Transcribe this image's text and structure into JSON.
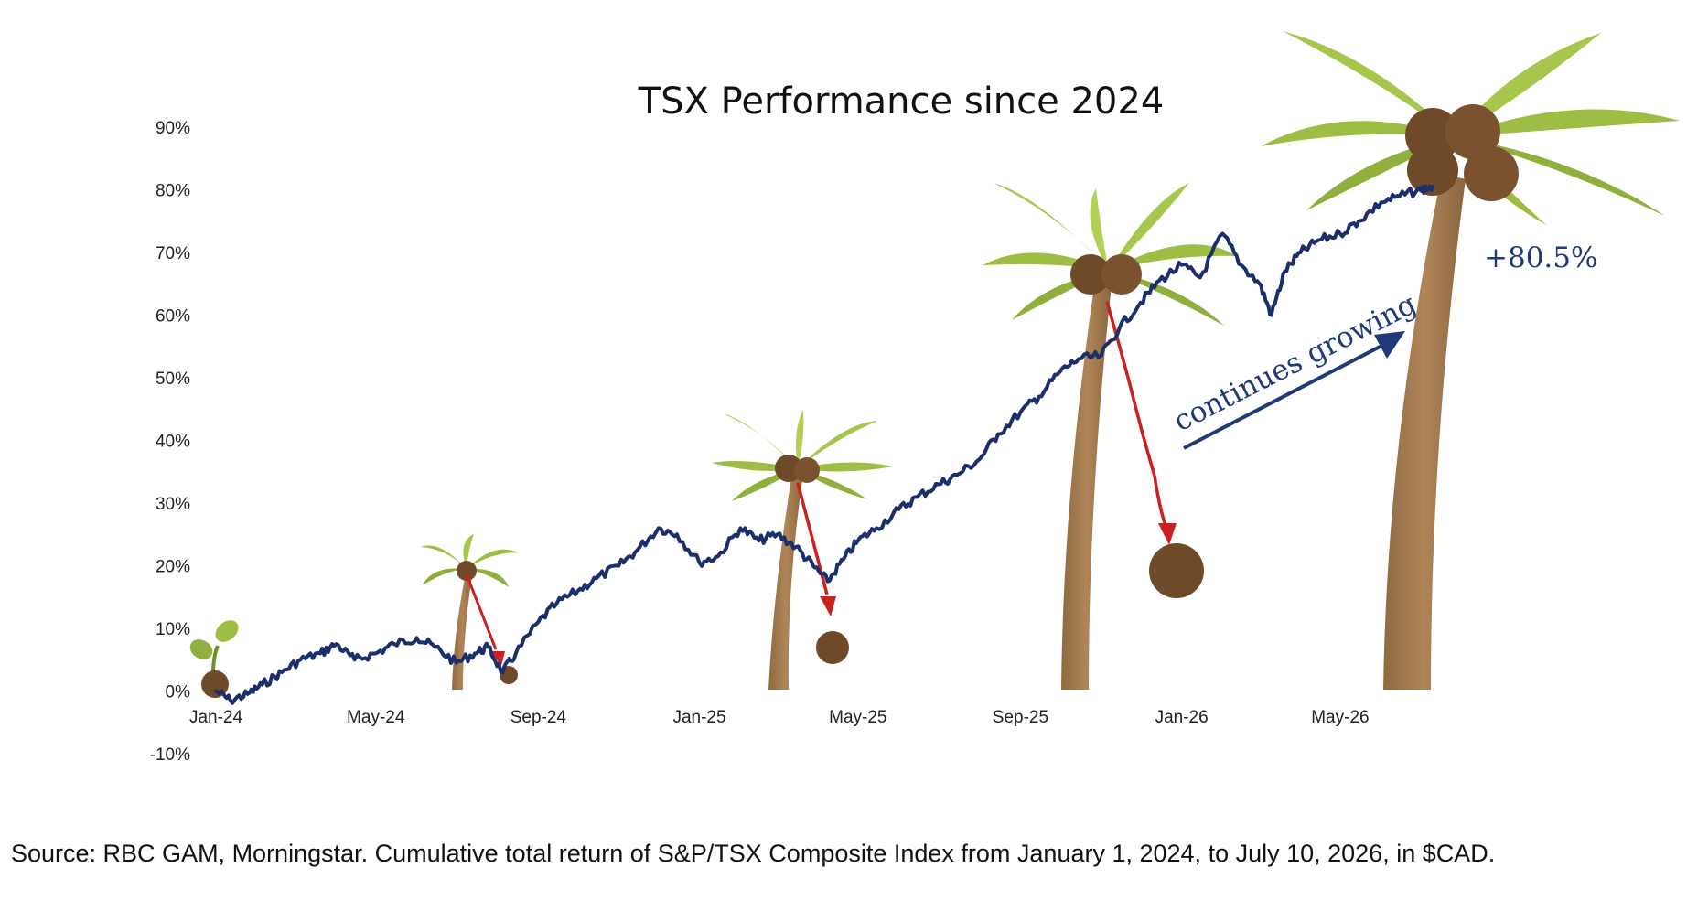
{
  "chart_data": {
    "type": "line",
    "title": "TSX Performance since 2024",
    "xlabel": "",
    "ylabel": "",
    "y_ticks": [
      "90%",
      "80%",
      "70%",
      "60%",
      "50%",
      "40%",
      "30%",
      "20%",
      "10%",
      "0%",
      "-10%"
    ],
    "y_tick_values": [
      90,
      80,
      70,
      60,
      50,
      40,
      30,
      20,
      10,
      0,
      -10
    ],
    "ylim": [
      -10,
      90
    ],
    "x_ticks": [
      "Jan-24",
      "May-24",
      "Sep-24",
      "Jan-25",
      "May-25",
      "Sep-25",
      "Jan-26",
      "May-26"
    ],
    "x_tick_dates": [
      "2024-01-01",
      "2024-05-01",
      "2024-09-01",
      "2025-01-01",
      "2025-05-01",
      "2025-09-01",
      "2026-01-01",
      "2026-05-01"
    ],
    "xlim": [
      "2024-01-01",
      "2026-07-10"
    ],
    "grid": false,
    "legend": "none",
    "series": [
      {
        "color": "#1b2f6b",
        "points": [
          [
            "2024-01-01",
            0
          ],
          [
            "2024-01-12",
            -1.5
          ],
          [
            "2024-01-25",
            -0.5
          ],
          [
            "2024-02-05",
            1
          ],
          [
            "2024-02-20",
            3
          ],
          [
            "2024-03-05",
            5
          ],
          [
            "2024-03-20",
            6
          ],
          [
            "2024-04-01",
            7.5
          ],
          [
            "2024-04-15",
            5
          ],
          [
            "2024-05-01",
            6
          ],
          [
            "2024-05-15",
            7.5
          ],
          [
            "2024-06-01",
            8.5
          ],
          [
            "2024-06-15",
            7
          ],
          [
            "2024-07-01",
            4.5
          ],
          [
            "2024-07-15",
            6
          ],
          [
            "2024-07-25",
            7
          ],
          [
            "2024-08-05",
            3
          ],
          [
            "2024-08-15",
            6
          ],
          [
            "2024-09-01",
            11
          ],
          [
            "2024-09-15",
            14
          ],
          [
            "2024-10-01",
            16
          ],
          [
            "2024-10-15",
            18
          ],
          [
            "2024-11-01",
            20
          ],
          [
            "2024-11-15",
            22.5
          ],
          [
            "2024-12-01",
            26
          ],
          [
            "2024-12-15",
            25
          ],
          [
            "2025-01-01",
            20.5
          ],
          [
            "2025-01-15",
            21.5
          ],
          [
            "2025-02-01",
            26
          ],
          [
            "2025-02-15",
            24
          ],
          [
            "2025-03-01",
            25
          ],
          [
            "2025-03-15",
            23
          ],
          [
            "2025-03-28",
            20
          ],
          [
            "2025-04-08",
            17.5
          ],
          [
            "2025-04-20",
            21
          ],
          [
            "2025-05-01",
            24
          ],
          [
            "2025-05-15",
            26
          ],
          [
            "2025-06-01",
            29
          ],
          [
            "2025-06-15",
            31
          ],
          [
            "2025-07-01",
            33
          ],
          [
            "2025-07-15",
            34.5
          ],
          [
            "2025-08-01",
            37
          ],
          [
            "2025-08-15",
            41
          ],
          [
            "2025-09-01",
            44.5
          ],
          [
            "2025-09-15",
            47
          ],
          [
            "2025-10-01",
            51
          ],
          [
            "2025-10-15",
            53
          ],
          [
            "2025-11-01",
            53.5
          ],
          [
            "2025-11-15",
            58
          ],
          [
            "2025-12-01",
            62
          ],
          [
            "2025-12-15",
            65.5
          ],
          [
            "2026-01-01",
            68
          ],
          [
            "2026-01-15",
            66
          ],
          [
            "2026-02-01",
            73
          ],
          [
            "2026-02-15",
            68
          ],
          [
            "2026-03-01",
            65
          ],
          [
            "2026-03-10",
            60
          ],
          [
            "2026-03-20",
            67
          ],
          [
            "2026-04-01",
            70
          ],
          [
            "2026-04-15",
            72
          ],
          [
            "2026-05-01",
            73
          ],
          [
            "2026-05-15",
            75
          ],
          [
            "2026-06-01",
            78
          ],
          [
            "2026-06-15",
            79
          ],
          [
            "2026-07-01",
            80
          ],
          [
            "2026-07-10",
            80.5
          ]
        ]
      }
    ],
    "annotations": [
      {
        "text": "continues growing"
      },
      {
        "text": "+80.5%"
      }
    ]
  },
  "source_note": "Source: RBC GAM, Morningstar. Cumulative total return of S&P/TSX Composite Index from January 1, 2024, to July 10, 2026, in $CAD."
}
